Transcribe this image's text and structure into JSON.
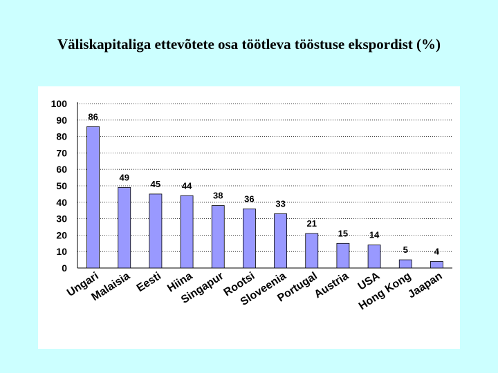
{
  "slide": {
    "title": "Väliskapitaliga ettevõtete osa töötleva tööstuse ekspordist (%)"
  },
  "chart_data": {
    "type": "bar",
    "title": "Väliskapitaliga ettevõtete osa töötleva tööstuse ekspordist (%)",
    "categories": [
      "Ungari",
      "Malaisia",
      "Eesti",
      "Hiina",
      "Singapur",
      "Rootsi",
      "Sloveenia",
      "Portugal",
      "Austria",
      "USA",
      "Hong Kong",
      "Jaapan"
    ],
    "values": [
      86,
      49,
      45,
      44,
      38,
      36,
      33,
      21,
      15,
      14,
      5,
      4
    ],
    "ylim": [
      0,
      100
    ],
    "yticks": [
      0,
      10,
      20,
      30,
      40,
      50,
      60,
      70,
      80,
      90,
      100
    ],
    "xlabel": "",
    "ylabel": "",
    "grid": "horizontal dotted",
    "legend": "none",
    "colors": {
      "bar_fill": "#9999ff",
      "bar_stroke": "#000000",
      "background": "#ccffff",
      "plot_background": "#ffffff"
    }
  }
}
